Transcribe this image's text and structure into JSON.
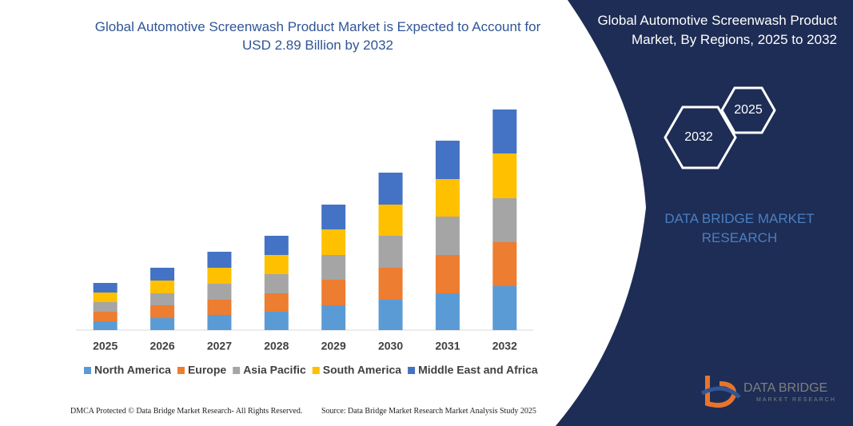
{
  "chart_data": {
    "type": "bar",
    "stacked": true,
    "title": "Global Automotive Screenwash Product Market is Expected to Account for USD 2.89 Billion by 2032",
    "categories": [
      "2025",
      "2026",
      "2027",
      "2028",
      "2029",
      "2030",
      "2031",
      "2032"
    ],
    "series": [
      {
        "name": "North America",
        "color": "#5b9bd5",
        "values": [
          11,
          15,
          19,
          23,
          31,
          38,
          46,
          55
        ]
      },
      {
        "name": "Europe",
        "color": "#ed7d31",
        "values": [
          12,
          16,
          19,
          23,
          32,
          40,
          48,
          55
        ]
      },
      {
        "name": "Asia Pacific",
        "color": "#a5a5a5",
        "values": [
          12,
          15,
          20,
          24,
          31,
          40,
          48,
          55
        ]
      },
      {
        "name": "South America",
        "color": "#ffc000",
        "values": [
          12,
          16,
          20,
          24,
          32,
          39,
          47,
          56
        ]
      },
      {
        "name": "Middle East and Africa",
        "color": "#4472c4",
        "values": [
          12,
          16,
          20,
          24,
          31,
          40,
          48,
          55
        ]
      }
    ],
    "ylim": [
      0,
      280
    ]
  },
  "panel": {
    "title": "Global Automotive Screenwash Product Market, By Regions, 2025 to 2032",
    "hexagons": [
      "2025",
      "2032"
    ],
    "brand": "DATA BRIDGE MARKET RESEARCH"
  },
  "logo": {
    "name": "DATA BRIDGE",
    "tagline": "MARKET RESEARCH"
  },
  "footer": {
    "left": "DMCA Protected © Data Bridge Market Research- All Rights Reserved.",
    "right": "Source: Data Bridge Market Research Market Analysis Study 2025"
  }
}
